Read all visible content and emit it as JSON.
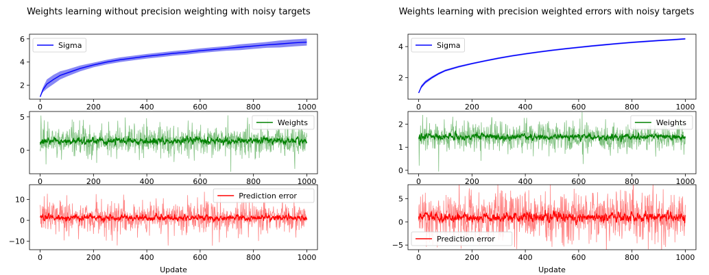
{
  "chart_data": [
    {
      "title": "Weights learning without precision weighting with noisy targets",
      "xlabel": "Update",
      "panels": [
        {
          "type": "line",
          "series_name": "Sigma",
          "color": "#0000ff",
          "band_color": "#7b7bf3",
          "ylim": [
            0.8,
            6.4
          ],
          "yticks": [
            2,
            4,
            6
          ],
          "legend": "upper-left",
          "x": [
            0,
            10,
            25,
            50,
            75,
            100,
            150,
            200,
            250,
            300,
            350,
            400,
            450,
            500,
            550,
            600,
            650,
            700,
            750,
            800,
            850,
            900,
            950,
            1000
          ],
          "mean": [
            1.0,
            1.6,
            2.1,
            2.5,
            2.85,
            3.05,
            3.45,
            3.75,
            4.0,
            4.2,
            4.35,
            4.5,
            4.62,
            4.75,
            4.85,
            4.98,
            5.08,
            5.18,
            5.28,
            5.38,
            5.48,
            5.56,
            5.65,
            5.72
          ],
          "band_half_width": [
            0.0,
            0.2,
            0.4,
            0.4,
            0.35,
            0.3,
            0.25,
            0.2,
            0.2,
            0.2,
            0.2,
            0.2,
            0.2,
            0.2,
            0.2,
            0.2,
            0.2,
            0.2,
            0.25,
            0.25,
            0.25,
            0.3,
            0.3,
            0.3
          ]
        },
        {
          "type": "line",
          "series_name": "Weights",
          "color": "#008000",
          "band_color": "#7fc07f",
          "ylim": [
            -3.5,
            5.8
          ],
          "yticks": [
            0,
            5
          ],
          "legend": "upper-right",
          "noise": {
            "n": 1000,
            "mean": 1.4,
            "mean_spread": 0.45,
            "raw_spread": 1.1,
            "raw_spikes": [
              [
                3,
                5.2
              ],
              [
                15,
                4.5
              ],
              [
                120,
                4.6
              ],
              [
                715,
                -3.2
              ],
              [
                22,
                -2.1
              ]
            ]
          }
        },
        {
          "type": "line",
          "series_name": "Prediction error",
          "color": "#ff0000",
          "band_color": "#ff8080",
          "ylim": [
            -14,
            17
          ],
          "yticks": [
            -10,
            0,
            10
          ],
          "legend": "upper-right",
          "noise": {
            "n": 1000,
            "mean": 1.2,
            "mean_spread": 1.3,
            "raw_spread": 3.8,
            "raw_spikes": [
              [
                480,
                -12
              ],
              [
                15,
                11.5
              ],
              [
                100,
                12
              ],
              [
                210,
                12.5
              ],
              [
                590,
                11
              ]
            ]
          }
        }
      ],
      "xticks": [
        0,
        200,
        400,
        600,
        800,
        1000
      ],
      "xlim": [
        -40,
        1040
      ]
    },
    {
      "title": "Weights learning with precision weighted errors with noisy targets",
      "xlabel": "Update",
      "panels": [
        {
          "type": "line",
          "series_name": "Sigma",
          "color": "#0000ff",
          "band_color": "#7b7bf3",
          "ylim": [
            0.6,
            4.8
          ],
          "yticks": [
            2,
            4
          ],
          "legend": "upper-left",
          "x": [
            0,
            10,
            25,
            50,
            75,
            100,
            150,
            200,
            250,
            300,
            350,
            400,
            450,
            500,
            550,
            600,
            650,
            700,
            750,
            800,
            850,
            900,
            950,
            1000
          ],
          "mean": [
            1.0,
            1.4,
            1.7,
            2.0,
            2.25,
            2.45,
            2.7,
            2.9,
            3.08,
            3.25,
            3.4,
            3.53,
            3.65,
            3.76,
            3.86,
            3.95,
            4.04,
            4.12,
            4.2,
            4.27,
            4.33,
            4.39,
            4.44,
            4.5
          ],
          "band_half_width": [
            0.0,
            0.1,
            0.1,
            0.08,
            0.07,
            0.06,
            0.06,
            0.05,
            0.05,
            0.05,
            0.05,
            0.05,
            0.05,
            0.05,
            0.05,
            0.05,
            0.05,
            0.05,
            0.05,
            0.05,
            0.05,
            0.05,
            0.05,
            0.05
          ]
        },
        {
          "type": "line",
          "series_name": "Weights",
          "color": "#008000",
          "band_color": "#7fc07f",
          "ylim": [
            -0.15,
            2.55
          ],
          "yticks": [
            0,
            1,
            2
          ],
          "legend": "upper-right",
          "noise": {
            "n": 1000,
            "mean": 1.45,
            "mean_spread": 0.12,
            "raw_spread": 0.3,
            "raw_spikes": [
              [
                2,
                0.2
              ],
              [
                15,
                2.4
              ],
              [
                75,
                -0.05
              ],
              [
                30,
                2.3
              ]
            ]
          }
        },
        {
          "type": "line",
          "series_name": "Prediction error",
          "color": "#ff0000",
          "band_color": "#ff8080",
          "ylim": [
            -6,
            8
          ],
          "yticks": [
            -5,
            0,
            5
          ],
          "legend": "lower-left",
          "noise": {
            "n": 1000,
            "mean": 1.0,
            "mean_spread": 0.9,
            "raw_spread": 2.6,
            "raw_spikes": [
              [
                190,
                7.2
              ],
              [
                70,
                -5.5
              ],
              [
                920,
                -5.0
              ],
              [
                400,
                6.5
              ]
            ]
          }
        }
      ],
      "xticks": [
        0,
        200,
        400,
        600,
        800,
        1000
      ],
      "xlim": [
        -40,
        1040
      ]
    }
  ]
}
